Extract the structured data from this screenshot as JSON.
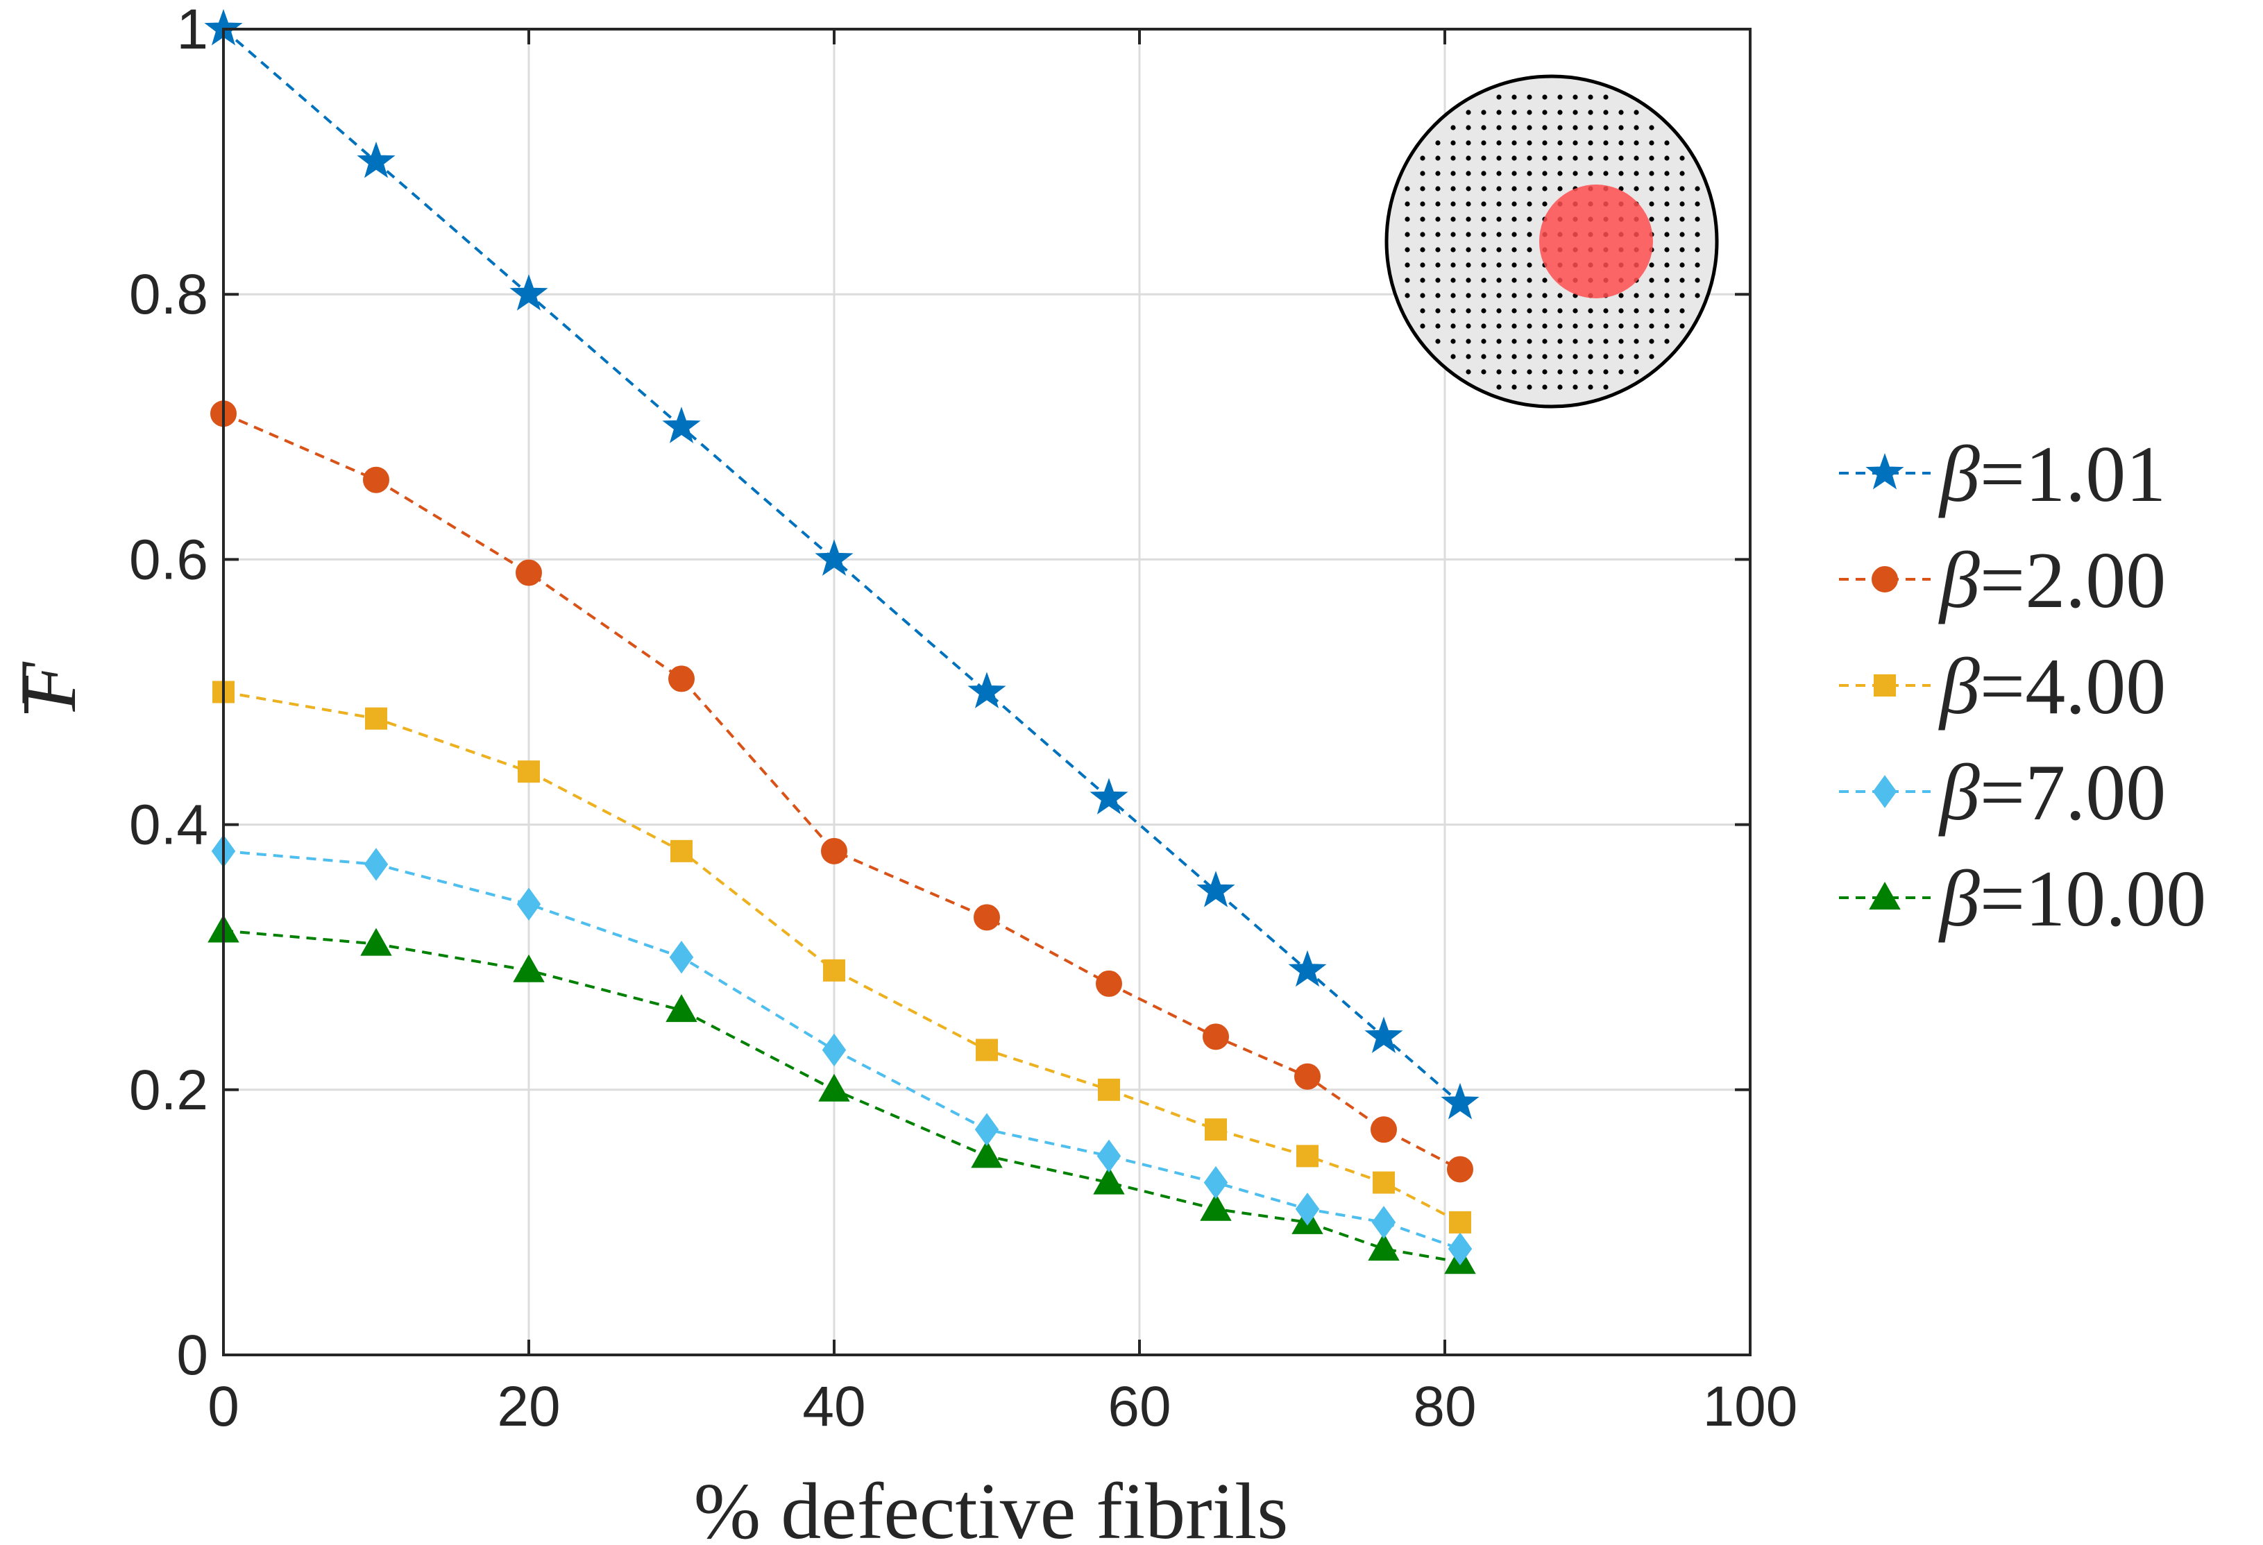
{
  "chart_data": {
    "type": "line",
    "title": "",
    "xlabel": "% defective fibrils",
    "ylabel": "F",
    "ylabel_accent": "bar",
    "xlim": [
      0,
      100
    ],
    "ylim": [
      0,
      1
    ],
    "xticks": [
      0,
      20,
      40,
      60,
      80,
      100
    ],
    "yticks": [
      0,
      0.2,
      0.4,
      0.6,
      0.8,
      1
    ],
    "xtick_labels": [
      "0",
      "20",
      "40",
      "60",
      "80",
      "100"
    ],
    "ytick_labels": [
      "0",
      "0.2",
      "0.4",
      "0.6",
      "0.8",
      "1"
    ],
    "grid": true,
    "legend_position": "outside-right",
    "x": [
      0,
      10,
      20,
      30,
      40,
      50,
      58,
      65,
      71,
      76,
      81
    ],
    "series": [
      {
        "name": "β=1.01",
        "beta_symbol": "β",
        "beta_value": "=1.01",
        "color": "#0072BD",
        "marker": "star",
        "values": [
          1.0,
          0.9,
          0.8,
          0.7,
          0.6,
          0.5,
          0.42,
          0.35,
          0.29,
          0.24,
          0.19
        ]
      },
      {
        "name": "β=2.00",
        "beta_symbol": "β",
        "beta_value": "=2.00",
        "color": "#D95319",
        "marker": "circle",
        "values": [
          0.71,
          0.66,
          0.59,
          0.51,
          0.38,
          0.33,
          0.28,
          0.24,
          0.21,
          0.17,
          0.14
        ]
      },
      {
        "name": "β=4.00",
        "beta_symbol": "β",
        "beta_value": "=4.00",
        "color": "#EDB120",
        "marker": "square",
        "values": [
          0.5,
          0.48,
          0.44,
          0.38,
          0.29,
          0.23,
          0.2,
          0.17,
          0.15,
          0.13,
          0.1
        ]
      },
      {
        "name": "β=7.00",
        "beta_symbol": "β",
        "beta_value": "=7.00",
        "color": "#4DBEEE",
        "marker": "diamond",
        "values": [
          0.38,
          0.37,
          0.34,
          0.3,
          0.23,
          0.17,
          0.15,
          0.13,
          0.11,
          0.1,
          0.08
        ]
      },
      {
        "name": "β=10.00",
        "beta_symbol": "β",
        "beta_value": "=10.00",
        "color": "#008000",
        "marker": "triangle",
        "values": [
          0.32,
          0.31,
          0.29,
          0.26,
          0.2,
          0.15,
          0.13,
          0.11,
          0.1,
          0.08,
          0.07
        ]
      }
    ],
    "inset": {
      "description_colors": {
        "disk_fill": "#e8e8e8",
        "dot_color": "#000000",
        "defect_color": "#ff4d4d"
      }
    }
  }
}
